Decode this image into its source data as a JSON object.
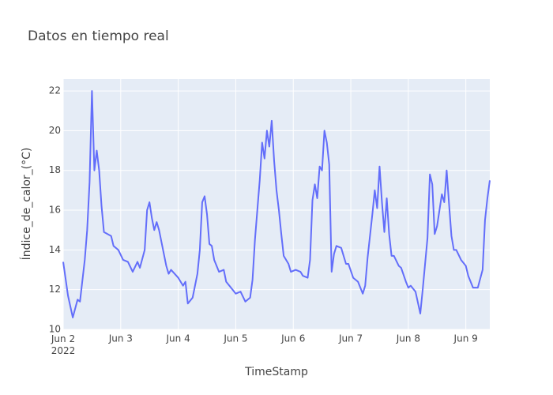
{
  "chart_data": {
    "type": "line",
    "title": "Datos en tiempo real",
    "x_label": "TimeStamp",
    "y_label": "Índice_de_calor_(°C)",
    "color": "#636efa",
    "grid": true,
    "xlim": [
      "2022-06-02 00:00",
      "2022-06-09 10:00"
    ],
    "ylim": [
      10,
      22.6
    ],
    "yticks": [
      10,
      12,
      14,
      16,
      18,
      20,
      22
    ],
    "xticks": [
      {
        "value": "2022-06-02 00:00",
        "label": "Jun 2\n2022"
      },
      {
        "value": "2022-06-03 00:00",
        "label": "Jun 3"
      },
      {
        "value": "2022-06-04 00:00",
        "label": "Jun 4"
      },
      {
        "value": "2022-06-05 00:00",
        "label": "Jun 5"
      },
      {
        "value": "2022-06-06 00:00",
        "label": "Jun 6"
      },
      {
        "value": "2022-06-07 00:00",
        "label": "Jun 7"
      },
      {
        "value": "2022-06-08 00:00",
        "label": "Jun 8"
      },
      {
        "value": "2022-06-09 00:00",
        "label": "Jun 9"
      }
    ],
    "x": [
      "2022-06-02 00:00",
      "2022-06-02 02:00",
      "2022-06-02 04:00",
      "2022-06-02 06:00",
      "2022-06-02 07:00",
      "2022-06-02 09:00",
      "2022-06-02 10:00",
      "2022-06-02 11:00",
      "2022-06-02 12:00",
      "2022-06-02 13:00",
      "2022-06-02 14:00",
      "2022-06-02 15:00",
      "2022-06-02 16:00",
      "2022-06-02 17:00",
      "2022-06-02 20:00",
      "2022-06-02 21:00",
      "2022-06-02 23:00",
      "2022-06-03 01:00",
      "2022-06-03 03:00",
      "2022-06-03 05:00",
      "2022-06-03 07:00",
      "2022-06-03 08:00",
      "2022-06-03 10:00",
      "2022-06-03 11:00",
      "2022-06-03 12:00",
      "2022-06-03 13:00",
      "2022-06-03 14:00",
      "2022-06-03 15:00",
      "2022-06-03 16:00",
      "2022-06-03 17:00",
      "2022-06-03 19:00",
      "2022-06-03 20:00",
      "2022-06-03 21:00",
      "2022-06-04 00:00",
      "2022-06-04 02:00",
      "2022-06-04 03:00",
      "2022-06-04 04:00",
      "2022-06-04 06:00",
      "2022-06-04 08:00",
      "2022-06-04 09:00",
      "2022-06-04 10:00",
      "2022-06-04 11:00",
      "2022-06-04 12:00",
      "2022-06-04 13:00",
      "2022-06-04 14:00",
      "2022-06-04 15:00",
      "2022-06-04 17:00",
      "2022-06-04 19:00",
      "2022-06-04 20:00",
      "2022-06-04 22:00",
      "2022-06-05 00:00",
      "2022-06-05 02:00",
      "2022-06-05 04:00",
      "2022-06-05 06:00",
      "2022-06-05 07:00",
      "2022-06-05 08:00",
      "2022-06-05 10:00",
      "2022-06-05 11:00",
      "2022-06-05 12:00",
      "2022-06-05 13:00",
      "2022-06-05 14:00",
      "2022-06-05 15:00",
      "2022-06-05 16:00",
      "2022-06-05 17:00",
      "2022-06-05 18:00",
      "2022-06-05 19:00",
      "2022-06-05 20:00",
      "2022-06-05 22:00",
      "2022-06-05 23:00",
      "2022-06-06 01:00",
      "2022-06-06 03:00",
      "2022-06-06 04:00",
      "2022-06-06 06:00",
      "2022-06-06 07:00",
      "2022-06-06 08:00",
      "2022-06-06 09:00",
      "2022-06-06 10:00",
      "2022-06-06 11:00",
      "2022-06-06 12:00",
      "2022-06-06 13:00",
      "2022-06-06 14:00",
      "2022-06-06 15:00",
      "2022-06-06 16:00",
      "2022-06-06 17:00",
      "2022-06-06 18:00",
      "2022-06-06 20:00",
      "2022-06-06 22:00",
      "2022-06-06 23:00",
      "2022-06-07 01:00",
      "2022-06-07 03:00",
      "2022-06-07 05:00",
      "2022-06-07 06:00",
      "2022-06-07 07:00",
      "2022-06-07 09:00",
      "2022-06-07 10:00",
      "2022-06-07 11:00",
      "2022-06-07 12:00",
      "2022-06-07 13:00",
      "2022-06-07 14:00",
      "2022-06-07 15:00",
      "2022-06-07 16:00",
      "2022-06-07 17:00",
      "2022-06-07 18:00",
      "2022-06-07 20:00",
      "2022-06-07 21:00",
      "2022-06-07 23:00",
      "2022-06-08 00:00",
      "2022-06-08 01:00",
      "2022-06-08 03:00",
      "2022-06-08 05:00",
      "2022-06-08 06:00",
      "2022-06-08 08:00",
      "2022-06-08 09:00",
      "2022-06-08 10:00",
      "2022-06-08 11:00",
      "2022-06-08 12:00",
      "2022-06-08 14:00",
      "2022-06-08 15:00",
      "2022-06-08 16:00",
      "2022-06-08 17:00",
      "2022-06-08 18:00",
      "2022-06-08 19:00",
      "2022-06-08 20:00",
      "2022-06-08 22:00",
      "2022-06-09 00:00",
      "2022-06-09 01:00",
      "2022-06-09 03:00",
      "2022-06-09 05:00",
      "2022-06-09 07:00",
      "2022-06-09 08:00",
      "2022-06-09 09:00",
      "2022-06-09 10:00"
    ],
    "values": [
      13.4,
      11.7,
      10.6,
      11.5,
      11.4,
      13.5,
      15,
      17.4,
      22,
      18,
      19,
      18,
      16.2,
      14.9,
      14.7,
      14.2,
      14,
      13.5,
      13.4,
      12.9,
      13.4,
      13.1,
      14,
      16,
      16.4,
      15.6,
      15,
      15.4,
      15,
      14.4,
      13.2,
      12.8,
      13,
      12.6,
      12.2,
      12.4,
      11.3,
      11.6,
      12.8,
      14,
      16.4,
      16.7,
      15.8,
      14.3,
      14.2,
      13.5,
      12.9,
      13,
      12.4,
      12.1,
      11.8,
      11.9,
      11.4,
      11.6,
      12.5,
      14.5,
      17.5,
      19.4,
      18.6,
      20,
      19.2,
      20.5,
      18.5,
      17,
      16,
      14.8,
      13.7,
      13.3,
      12.9,
      13,
      12.9,
      12.7,
      12.6,
      13.5,
      16.5,
      17.3,
      16.6,
      18.2,
      18,
      20,
      19.4,
      18.3,
      12.9,
      13.8,
      14.2,
      14.1,
      13.3,
      13.3,
      12.6,
      12.4,
      11.8,
      12.2,
      13.6,
      15.8,
      17,
      16.1,
      18.2,
      16.4,
      14.9,
      16.6,
      14.8,
      13.7,
      13.7,
      13.2,
      13.1,
      12.4,
      12.1,
      12.2,
      11.9,
      10.8,
      12,
      14.6,
      17.8,
      17.3,
      14.8,
      15.2,
      16.8,
      16.4,
      18,
      16.3,
      14.7,
      14,
      14,
      13.5,
      13.2,
      12.7,
      12.1,
      12.1,
      13,
      15.5,
      16.6,
      17.5
    ]
  }
}
